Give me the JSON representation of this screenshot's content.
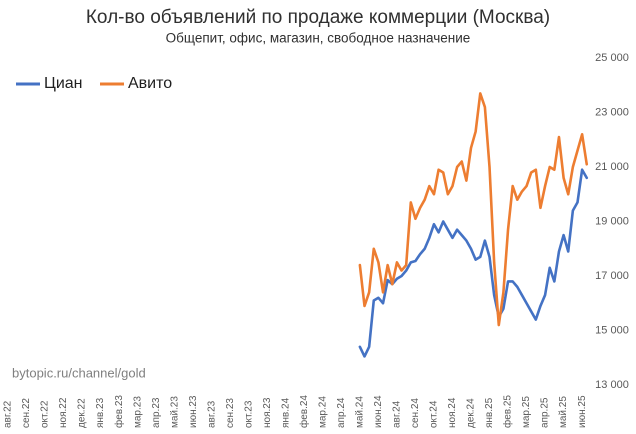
{
  "chart_data": {
    "type": "line",
    "title": "Кол-во объявлений по продаже коммерции (Москва)",
    "subtitle": "Общепит, офис, магазин, свободное назначение",
    "annotations": [
      "bytopic.ru/channel/gold"
    ],
    "legend": "top-left",
    "grid": false,
    "categories": [
      "авг.22",
      null,
      null,
      null,
      "сен.22",
      null,
      null,
      null,
      "окт.22",
      null,
      null,
      null,
      "ноя.22",
      null,
      null,
      null,
      "дек.22",
      null,
      null,
      null,
      "янв.23",
      null,
      null,
      null,
      "фев.23",
      null,
      null,
      null,
      "мар.23",
      null,
      null,
      null,
      "апр.23",
      null,
      null,
      null,
      "май.23",
      null,
      null,
      null,
      "июн.23",
      null,
      null,
      null,
      "авг.23",
      null,
      null,
      null,
      "сен.23",
      null,
      null,
      null,
      "окт.23",
      null,
      null,
      null,
      "ноя.23",
      null,
      null,
      null,
      "янв.24",
      null,
      null,
      null,
      "фев.24",
      null,
      null,
      null,
      "мар.24",
      null,
      null,
      null,
      "апр.24",
      null,
      null,
      null,
      "май.24",
      null,
      null,
      null,
      "июн.24",
      null,
      null,
      null,
      "авг.24",
      null,
      null,
      null,
      "сен.24",
      null,
      null,
      null,
      "окт.24",
      null,
      null,
      null,
      "ноя.24",
      null,
      null,
      null,
      "дек.24",
      null,
      null,
      null,
      "янв.25",
      null,
      null,
      null,
      "фев.25",
      null,
      null,
      null,
      "мар.25",
      null,
      null,
      null,
      "апр.25",
      null,
      null,
      null,
      "май.25",
      null,
      null,
      null,
      "июн.25",
      null,
      null,
      null
    ],
    "ylim": [
      13000,
      25000
    ],
    "yticks": [
      {
        "value": 13000,
        "label": "13 000"
      },
      {
        "value": 15000,
        "label": "15 000"
      },
      {
        "value": 17000,
        "label": "17 000"
      },
      {
        "value": 19000,
        "label": "19 000"
      },
      {
        "value": 21000,
        "label": "21 000"
      },
      {
        "value": 23000,
        "label": "23 000"
      },
      {
        "value": 25000,
        "label": "25 000"
      }
    ],
    "series": [
      {
        "name": "Циан",
        "color": "#4472c4",
        "values": [
          null,
          null,
          null,
          null,
          null,
          null,
          null,
          null,
          null,
          null,
          null,
          null,
          null,
          null,
          null,
          null,
          null,
          null,
          null,
          null,
          null,
          null,
          null,
          null,
          null,
          null,
          null,
          null,
          null,
          null,
          null,
          null,
          null,
          null,
          null,
          null,
          null,
          null,
          null,
          null,
          null,
          null,
          null,
          null,
          null,
          null,
          null,
          null,
          null,
          null,
          null,
          null,
          null,
          null,
          null,
          null,
          null,
          null,
          null,
          null,
          null,
          null,
          null,
          null,
          null,
          null,
          null,
          null,
          null,
          null,
          null,
          null,
          null,
          null,
          null,
          null,
          14400,
          14050,
          14400,
          16100,
          16200,
          16000,
          16850,
          16700,
          16900,
          17000,
          17200,
          17500,
          17550,
          17800,
          18000,
          18400,
          18900,
          18600,
          19000,
          18700,
          18400,
          18700,
          18500,
          18300,
          18000,
          17600,
          17700,
          18300,
          17700,
          16300,
          15500,
          15800,
          16800,
          16800,
          16600,
          16300,
          16000,
          15700,
          15400,
          15900,
          16300,
          17300,
          16800,
          17900,
          18500,
          17900,
          19400,
          19700,
          20900,
          20600,
          null,
          null
        ]
      },
      {
        "name": "Авито",
        "color": "#ed7d31",
        "values": [
          null,
          null,
          null,
          null,
          null,
          null,
          null,
          null,
          null,
          null,
          null,
          null,
          null,
          null,
          null,
          null,
          null,
          null,
          null,
          null,
          null,
          null,
          null,
          null,
          null,
          null,
          null,
          null,
          null,
          null,
          null,
          null,
          null,
          null,
          null,
          null,
          null,
          null,
          null,
          null,
          null,
          null,
          null,
          null,
          null,
          null,
          null,
          null,
          null,
          null,
          null,
          null,
          null,
          null,
          null,
          null,
          null,
          null,
          null,
          null,
          null,
          null,
          null,
          null,
          null,
          null,
          null,
          null,
          null,
          null,
          null,
          null,
          null,
          null,
          null,
          null,
          17400,
          15900,
          16400,
          18000,
          17500,
          16400,
          17400,
          16700,
          17500,
          17200,
          17400,
          19700,
          19100,
          19500,
          19800,
          20300,
          20000,
          20900,
          20800,
          20000,
          20300,
          21000,
          21200,
          20500,
          21700,
          22300,
          23700,
          23200,
          21000,
          17500,
          15200,
          16400,
          18700,
          20300,
          19800,
          20100,
          20300,
          20800,
          20900,
          19500,
          20300,
          21000,
          20900,
          22100,
          20600,
          20000,
          21000,
          21600,
          22200,
          21100,
          null,
          null
        ]
      }
    ]
  }
}
